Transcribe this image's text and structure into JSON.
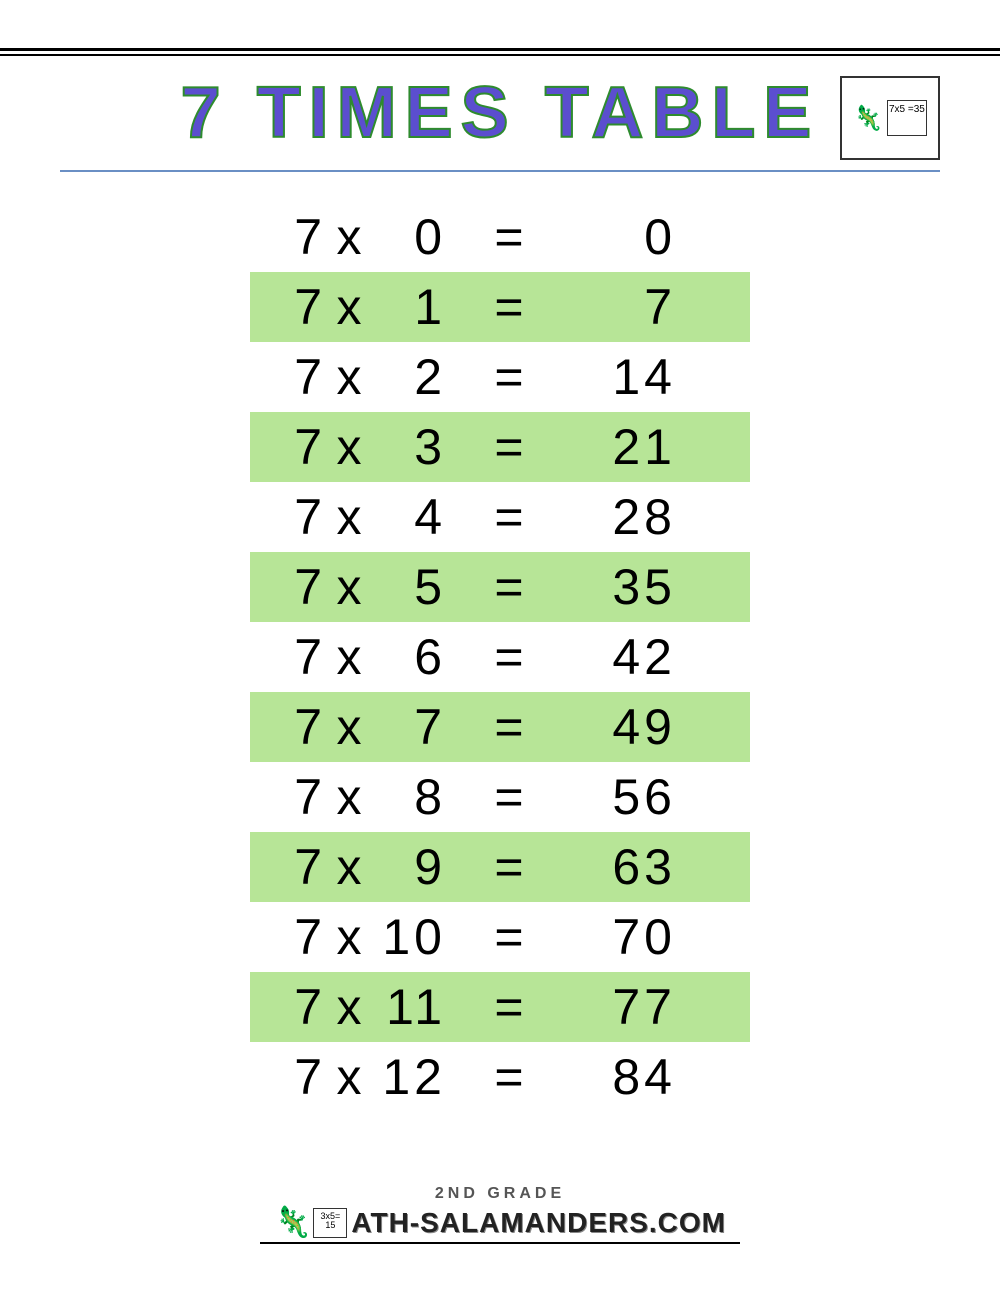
{
  "title": "7 TIMES TABLE",
  "title_style": {
    "fill_color": "#5b4ecf",
    "stroke_color": "#2e8b2e",
    "font_size": 72,
    "letter_spacing": 8
  },
  "corner_logo": {
    "board_text": "7x5\n=35"
  },
  "table": {
    "type": "table",
    "base": 7,
    "times_symbol": "x",
    "equals_symbol": "=",
    "font_size": 50,
    "text_color": "#000000",
    "highlight_color": "#b7e597",
    "background_color": "#ffffff",
    "rows": [
      {
        "multiplier": 0,
        "result": 0,
        "highlighted": false
      },
      {
        "multiplier": 1,
        "result": 7,
        "highlighted": true
      },
      {
        "multiplier": 2,
        "result": 14,
        "highlighted": false
      },
      {
        "multiplier": 3,
        "result": 21,
        "highlighted": true
      },
      {
        "multiplier": 4,
        "result": 28,
        "highlighted": false
      },
      {
        "multiplier": 5,
        "result": 35,
        "highlighted": true
      },
      {
        "multiplier": 6,
        "result": 42,
        "highlighted": false
      },
      {
        "multiplier": 7,
        "result": 49,
        "highlighted": true
      },
      {
        "multiplier": 8,
        "result": 56,
        "highlighted": false
      },
      {
        "multiplier": 9,
        "result": 63,
        "highlighted": true
      },
      {
        "multiplier": 10,
        "result": 70,
        "highlighted": false
      },
      {
        "multiplier": 11,
        "result": 77,
        "highlighted": true
      },
      {
        "multiplier": 12,
        "result": 84,
        "highlighted": false
      }
    ]
  },
  "footer": {
    "grade_label": "2ND GRADE",
    "logo_board_text": "3x5=\n15",
    "brand_text": "ATH-SALAMANDERS.COM"
  },
  "underline_color": "#6a8fc4"
}
